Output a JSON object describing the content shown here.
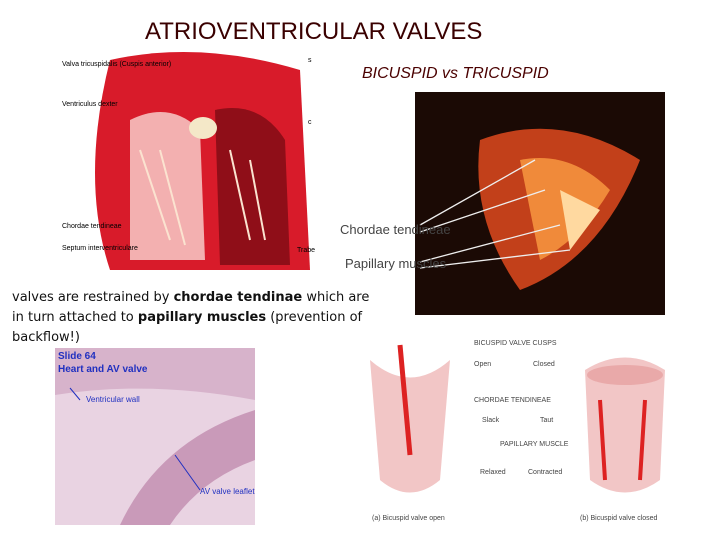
{
  "header": {
    "title": "ATRIOVENTRICULAR VALVES",
    "subtitle": "BICUSPID vs TRICUSPID"
  },
  "figure_heart": {
    "labels": [
      "Valva tricuspidalis (Cuspis anterior)",
      "Ventriculus dexter",
      "Chordae tendineae",
      "Septum interventriculare",
      "Trabe",
      "s",
      "c"
    ]
  },
  "figure_photo": {
    "labels": [
      "Chordae tendineae",
      "Papillary muscles"
    ]
  },
  "paragraph": [
    "valves are restrained by ",
    "chordae tendinae",
    " which are in turn attached to ",
    "papillary muscles",
    " (prevention of backflow!)"
  ],
  "figure_slide": {
    "title": "Slide 64",
    "subtitle": "Heart and AV valve",
    "labels": [
      "Ventricular wall",
      "AV valve leaflet"
    ]
  },
  "figure_diagram": {
    "heading": "BICUSPID VALVE CUSPS",
    "labels": [
      "Open",
      "Closed",
      "CHORDAE TENDINEAE",
      "Slack",
      "Taut",
      "PAPILLARY MUSCLE",
      "Relaxed",
      "Contracted"
    ],
    "captions": [
      "(a) Bicuspid valve open",
      "(b) Bicuspid valve closed"
    ]
  }
}
